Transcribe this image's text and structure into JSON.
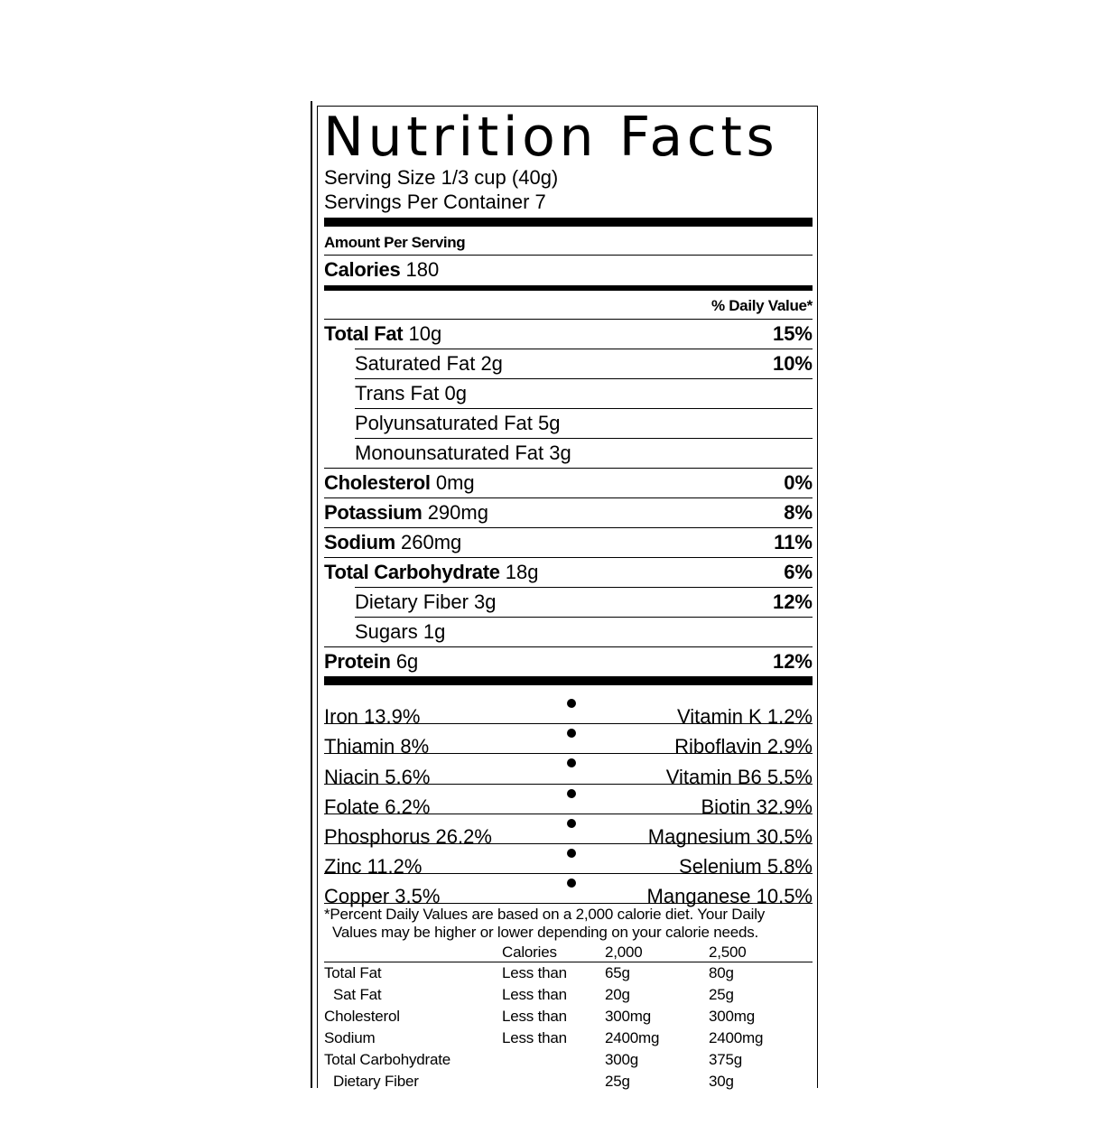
{
  "title": "Nutrition Facts",
  "serving_size": "Serving Size 1/3 cup (40g)",
  "servings_per_container": "Servings Per Container 7",
  "amount_per_serving": "Amount Per Serving",
  "calories": {
    "label": "Calories",
    "value": "180"
  },
  "daily_value_header": "% Daily Value*",
  "nutrients": [
    {
      "name": "Total Fat",
      "amount": "10g",
      "dv": "15%",
      "bold": true,
      "sub": false
    },
    {
      "name": "Saturated Fat",
      "amount": "2g",
      "dv": "10%",
      "bold": false,
      "sub": true
    },
    {
      "name": "Trans Fat",
      "amount": "0g",
      "dv": "",
      "bold": false,
      "sub": true
    },
    {
      "name": "Polyunsaturated Fat",
      "amount": "5g",
      "dv": "",
      "bold": false,
      "sub": true
    },
    {
      "name": "Monounsaturated Fat",
      "amount": "3g",
      "dv": "",
      "bold": false,
      "sub": true
    },
    {
      "name": "Cholesterol",
      "amount": "0mg",
      "dv": "0%",
      "bold": true,
      "sub": false
    },
    {
      "name": "Potassium",
      "amount": "290mg",
      "dv": "8%",
      "bold": true,
      "sub": false
    },
    {
      "name": "Sodium",
      "amount": "260mg",
      "dv": "11%",
      "bold": true,
      "sub": false
    },
    {
      "name": "Total Carbohydrate",
      "amount": "18g",
      "dv": "6%",
      "bold": true,
      "sub": false
    },
    {
      "name": "Dietary Fiber",
      "amount": "3g",
      "dv": "12%",
      "bold": false,
      "sub": true
    },
    {
      "name": "Sugars",
      "amount": "1g",
      "dv": "",
      "bold": false,
      "sub": true
    },
    {
      "name": "Protein",
      "amount": "6g",
      "dv": "12%",
      "bold": true,
      "sub": false
    }
  ],
  "vitamins": [
    {
      "left": "Iron 13.9%",
      "right": "Vitamin K 1.2%"
    },
    {
      "left": "Thiamin 8%",
      "right": "Riboflavin 2.9%"
    },
    {
      "left": "Niacin 5.6%",
      "right": "Vitamin B6 5.5%"
    },
    {
      "left": "Folate 6.2%",
      "right": "Biotin 32.9%"
    },
    {
      "left": "Phosphorus 26.2%",
      "right": "Magnesium 30.5%"
    },
    {
      "left": "Zinc 11.2%",
      "right": "Selenium 5.8%"
    },
    {
      "left": "Copper 3.5%",
      "right": "Manganese 10.5%"
    }
  ],
  "footnote": {
    "line1": "*Percent Daily Values are based on a 2,000 calorie diet. Your Daily",
    "line2": "Values may be higher or lower depending on your calorie needs."
  },
  "dv_table": {
    "header": [
      "",
      "Calories",
      "2,000",
      "2,500"
    ],
    "rows": [
      {
        "nutrient": "Total Fat",
        "qualifier": "Less than",
        "c2000": "65g",
        "c2500": "80g",
        "indent": false
      },
      {
        "nutrient": "Sat Fat",
        "qualifier": "Less than",
        "c2000": "20g",
        "c2500": "25g",
        "indent": true
      },
      {
        "nutrient": "Cholesterol",
        "qualifier": "Less than",
        "c2000": "300mg",
        "c2500": "300mg",
        "indent": false
      },
      {
        "nutrient": "Sodium",
        "qualifier": "Less than",
        "c2000": "2400mg",
        "c2500": "2400mg",
        "indent": false
      },
      {
        "nutrient": "Total Carbohydrate",
        "qualifier": "",
        "c2000": "300g",
        "c2500": "375g",
        "indent": false
      },
      {
        "nutrient": "Dietary Fiber",
        "qualifier": "",
        "c2000": "25g",
        "c2500": "30g",
        "indent": true
      }
    ]
  }
}
